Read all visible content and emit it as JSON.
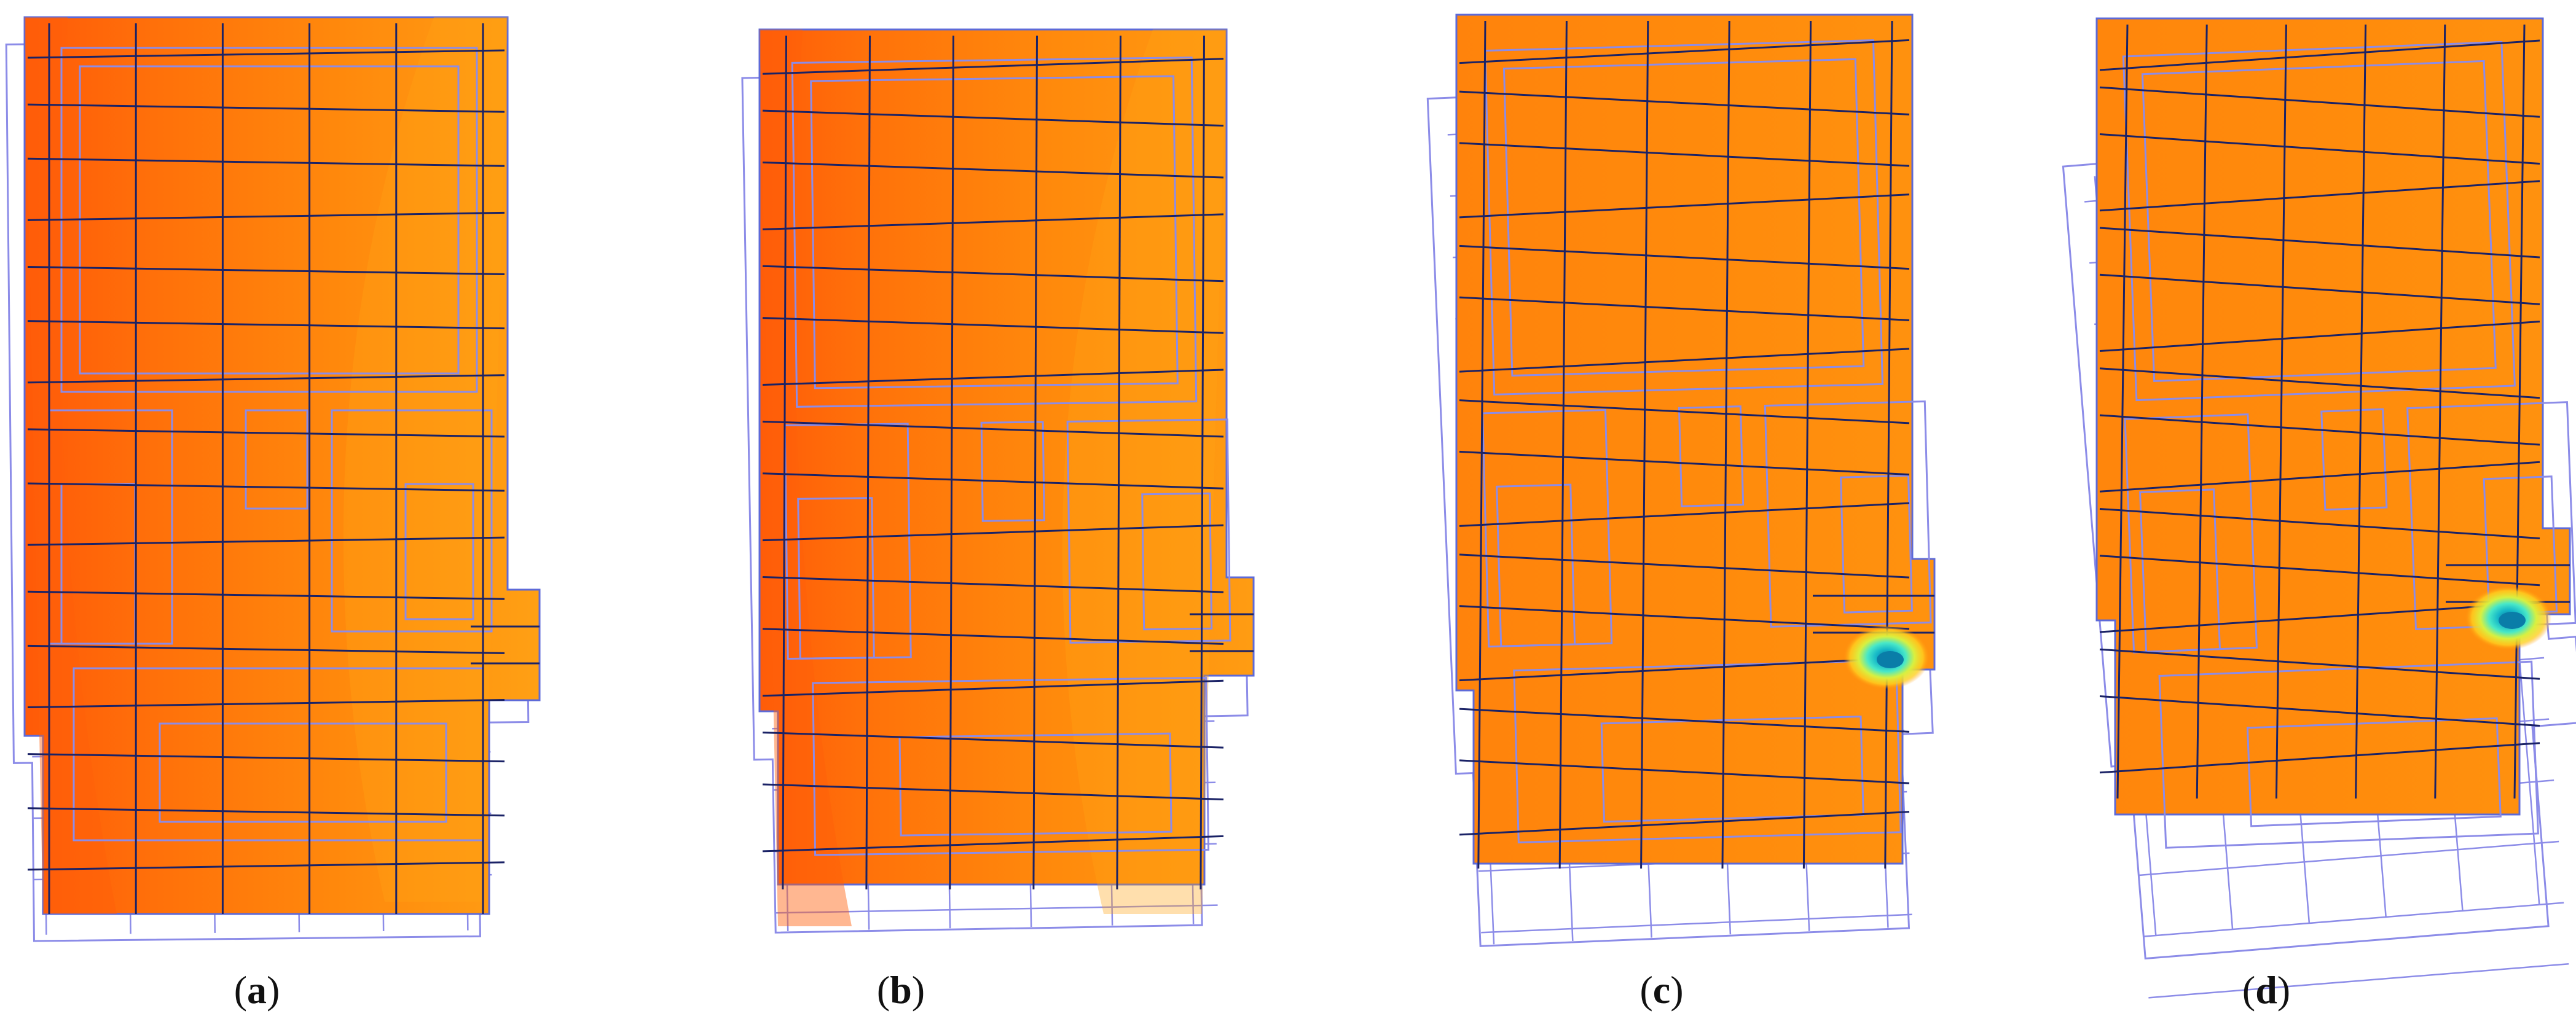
{
  "panels": [
    {
      "id": "a",
      "label_open": "(",
      "letter": "a",
      "label_close": ")",
      "deformation": 0.0,
      "hot_spot": false
    },
    {
      "id": "b",
      "label_open": "(",
      "letter": "b",
      "label_close": ")",
      "deformation": 0.35,
      "hot_spot": false
    },
    {
      "id": "c",
      "label_open": "(",
      "letter": "c",
      "label_close": ")",
      "deformation": 0.7,
      "hot_spot": true
    },
    {
      "id": "d",
      "label_open": "(",
      "letter": "d",
      "label_close": ")",
      "deformation": 1.0,
      "hot_spot": true
    }
  ],
  "colors": {
    "contour_deep": "#ff5f0a",
    "contour_mid": "#ff8a0c",
    "contour_light": "#ffa214",
    "mesh_dark": "#1a2266",
    "mesh_light": "#8c8ce8",
    "mesh_border": "#5d6ad8",
    "hot_spot_core": "#0a7da8",
    "hot_spot_ring": "#2ee0e0",
    "hot_spot_halo": "#e8f040"
  }
}
